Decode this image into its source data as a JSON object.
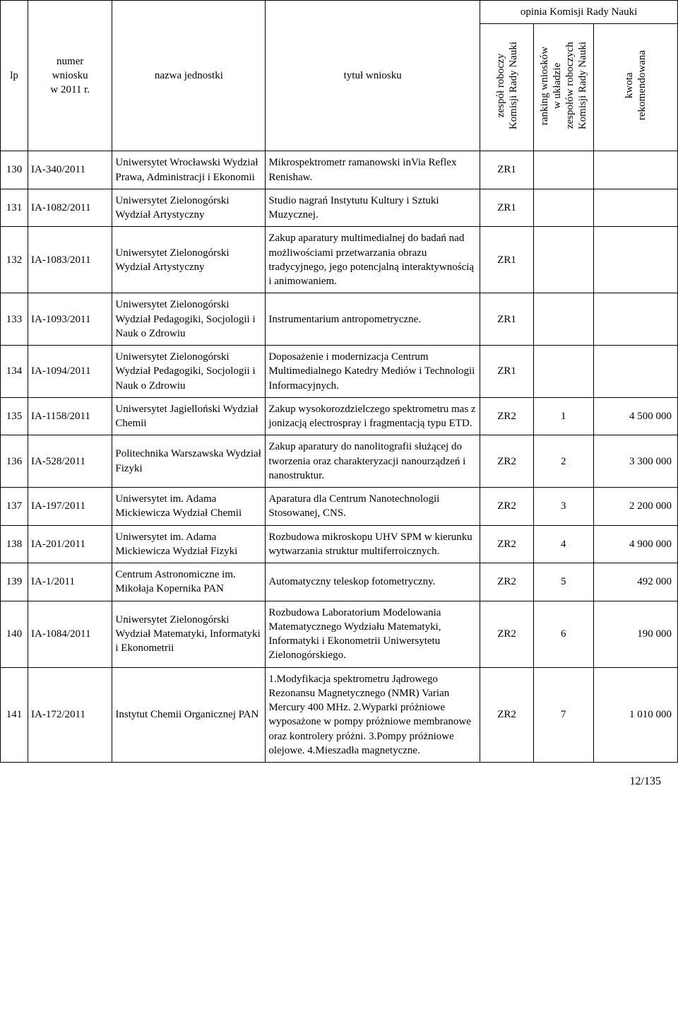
{
  "headers": {
    "lp": "lp",
    "numer": "numer\nwniosku\nw 2011 r.",
    "nazwa": "nazwa jednostki",
    "tytul": "tytuł wniosku",
    "opinia": "opinia Komisji Rady Nauki",
    "zespol": "zespół roboczy\nKomisji Rady Nauki",
    "ranking": "ranking wniosków\nw układzie\nzespołów roboczych\nKomisji Rady Nauki",
    "kwota": "kwota\nrekomendowana"
  },
  "rows": [
    {
      "lp": "130",
      "num": "IA-340/2011",
      "unit": "Uniwersytet Wrocławski Wydział Prawa, Administracji i Ekonomii",
      "title": "Mikrospektrometr ramanowski inVia Reflex Renishaw.",
      "zr": "ZR1",
      "rank": "",
      "kwota": ""
    },
    {
      "lp": "131",
      "num": "IA-1082/2011",
      "unit": "Uniwersytet Zielonogórski Wydział Artystyczny",
      "title": "Studio nagrań Instytutu Kultury i Sztuki Muzycznej.",
      "zr": "ZR1",
      "rank": "",
      "kwota": ""
    },
    {
      "lp": "132",
      "num": "IA-1083/2011",
      "unit": "Uniwersytet Zielonogórski Wydział Artystyczny",
      "title": "Zakup aparatury multimedialnej do badań nad możliwościami przetwarzania obrazu tradycyjnego, jego potencjalną interaktywnością i animowaniem.",
      "zr": "ZR1",
      "rank": "",
      "kwota": ""
    },
    {
      "lp": "133",
      "num": "IA-1093/2011",
      "unit": "Uniwersytet Zielonogórski Wydział Pedagogiki, Socjologii i Nauk o Zdrowiu",
      "title": "Instrumentarium antropometryczne.",
      "zr": "ZR1",
      "rank": "",
      "kwota": ""
    },
    {
      "lp": "134",
      "num": "IA-1094/2011",
      "unit": "Uniwersytet Zielonogórski Wydział Pedagogiki, Socjologii i Nauk o Zdrowiu",
      "title": "Doposażenie i modernizacja Centrum Multimedialnego Katedry Mediów i Technologii Informacyjnych.",
      "zr": "ZR1",
      "rank": "",
      "kwota": ""
    },
    {
      "lp": "135",
      "num": "IA-1158/2011",
      "unit": "Uniwersytet Jagielloński Wydział Chemii",
      "title": "Zakup wysokorozdzielczego spektrometru mas z jonizacją electrospray i fragmentacją typu ETD.",
      "zr": "ZR2",
      "rank": "1",
      "kwota": "4 500 000"
    },
    {
      "lp": "136",
      "num": "IA-528/2011",
      "unit": "Politechnika Warszawska Wydział Fizyki",
      "title": "Zakup aparatury do nanolitografii służącej do tworzenia oraz charakteryzacji nanourządzeń i nanostruktur.",
      "zr": "ZR2",
      "rank": "2",
      "kwota": "3 300 000"
    },
    {
      "lp": "137",
      "num": "IA-197/2011",
      "unit": "Uniwersytet im. Adama Mickiewicza Wydział Chemii",
      "title": "Aparatura dla Centrum Nanotechnologii Stosowanej, CNS.",
      "zr": "ZR2",
      "rank": "3",
      "kwota": "2 200 000"
    },
    {
      "lp": "138",
      "num": "IA-201/2011",
      "unit": "Uniwersytet im. Adama Mickiewicza Wydział Fizyki",
      "title": "Rozbudowa mikroskopu UHV SPM w kierunku wytwarzania struktur multiferroicznych.",
      "zr": "ZR2",
      "rank": "4",
      "kwota": "4 900 000"
    },
    {
      "lp": "139",
      "num": "IA-1/2011",
      "unit": "Centrum Astronomiczne im. Mikołaja Kopernika PAN",
      "title": "Automatyczny teleskop fotometryczny.",
      "zr": "ZR2",
      "rank": "5",
      "kwota": "492 000"
    },
    {
      "lp": "140",
      "num": "IA-1084/2011",
      "unit": "Uniwersytet Zielonogórski Wydział Matematyki, Informatyki i Ekonometrii",
      "title": "Rozbudowa Laboratorium Modelowania Matematycznego Wydziału Matematyki, Informatyki i Ekonometrii Uniwersytetu Zielonogórskiego.",
      "zr": "ZR2",
      "rank": "6",
      "kwota": "190 000"
    },
    {
      "lp": "141",
      "num": "IA-172/2011",
      "unit": "Instytut Chemii Organicznej PAN",
      "title": "1.Modyfikacja spektrometru Jądrowego Rezonansu Magnetycznego (NMR) Varian Mercury 400 MHz. 2.Wyparki próżniowe wyposażone w pompy próżniowe membranowe oraz kontrolery próżni. 3.Pompy próżniowe olejowe. 4.Mieszadła magnetyczne.",
      "zr": "ZR2",
      "rank": "7",
      "kwota": "1 010 000"
    }
  ],
  "footer": "12/135"
}
